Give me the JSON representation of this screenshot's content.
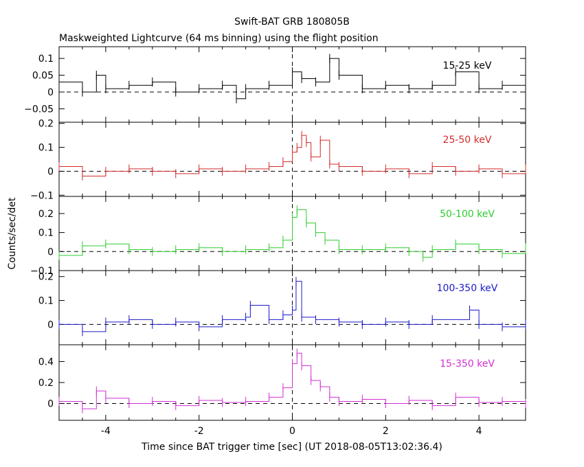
{
  "title": "Swift-BAT GRB 180805B",
  "subtitle": "Maskweighted Lightcurve (64 ms binning) using the flight position",
  "chart_data": {
    "type": "line",
    "xlabel": "Time since BAT trigger time [sec] (UT 2018-08-05T13:02:36.4)",
    "ylabel": "Counts/sec/det",
    "xlim": [
      -5,
      5
    ],
    "bin_width": 0.064,
    "x_ticks": [
      "-4",
      "-2",
      "0",
      "2",
      "4"
    ],
    "x_tick_values": [
      -4,
      -2,
      0,
      2,
      4
    ],
    "grid": false,
    "trigger_marker_x": 0,
    "panels": [
      {
        "name": "15-25 keV",
        "color": "#000000",
        "ylim": [
          -0.09,
          0.135
        ],
        "y_ticks": [
          -0.05,
          0,
          0.05,
          0.1
        ],
        "y_tick_labels": [
          "−0.05",
          "0",
          "0.05",
          "0.1"
        ],
        "series": [
          {
            "x": -5,
            "y": 0.03
          },
          {
            "x": -4.5,
            "y": 0.0
          },
          {
            "x": -4.2,
            "y": 0.05
          },
          {
            "x": -4,
            "y": 0.01
          },
          {
            "x": -3.5,
            "y": 0.02
          },
          {
            "x": -3,
            "y": 0.03
          },
          {
            "x": -2.5,
            "y": 0.0
          },
          {
            "x": -2,
            "y": 0.01
          },
          {
            "x": -1.5,
            "y": 0.02
          },
          {
            "x": -1.2,
            "y": -0.02
          },
          {
            "x": -1,
            "y": 0.01
          },
          {
            "x": -0.5,
            "y": 0.02
          },
          {
            "x": 0,
            "y": 0.06
          },
          {
            "x": 0.2,
            "y": 0.04
          },
          {
            "x": 0.5,
            "y": 0.03
          },
          {
            "x": 0.8,
            "y": 0.1
          },
          {
            "x": 1,
            "y": 0.05
          },
          {
            "x": 1.5,
            "y": 0.01
          },
          {
            "x": 2,
            "y": 0.02
          },
          {
            "x": 2.5,
            "y": 0.01
          },
          {
            "x": 3,
            "y": 0.02
          },
          {
            "x": 3.5,
            "y": 0.06
          },
          {
            "x": 4,
            "y": 0.01
          },
          {
            "x": 4.5,
            "y": 0.02
          },
          {
            "x": 5,
            "y": 0.0
          }
        ]
      },
      {
        "name": "25-50 keV",
        "color": "#d42a2a",
        "ylim": [
          -0.105,
          0.205
        ],
        "y_ticks": [
          -0.1,
          0,
          0.1,
          0.2
        ],
        "y_tick_labels": [
          "−0.1",
          "0",
          "0.1",
          "0.2"
        ],
        "series": [
          {
            "x": -5,
            "y": 0.02
          },
          {
            "x": -4.5,
            "y": -0.02
          },
          {
            "x": -4,
            "y": 0.0
          },
          {
            "x": -3.5,
            "y": 0.01
          },
          {
            "x": -3,
            "y": 0.0
          },
          {
            "x": -2.5,
            "y": -0.01
          },
          {
            "x": -2,
            "y": 0.01
          },
          {
            "x": -1.5,
            "y": 0.0
          },
          {
            "x": -1,
            "y": 0.01
          },
          {
            "x": -0.5,
            "y": 0.02
          },
          {
            "x": -0.2,
            "y": 0.04
          },
          {
            "x": 0,
            "y": 0.08
          },
          {
            "x": 0.1,
            "y": 0.1
          },
          {
            "x": 0.2,
            "y": 0.15
          },
          {
            "x": 0.3,
            "y": 0.12
          },
          {
            "x": 0.4,
            "y": 0.06
          },
          {
            "x": 0.6,
            "y": 0.13
          },
          {
            "x": 0.8,
            "y": 0.03
          },
          {
            "x": 1,
            "y": 0.02
          },
          {
            "x": 1.5,
            "y": 0.0
          },
          {
            "x": 2,
            "y": 0.01
          },
          {
            "x": 2.5,
            "y": -0.01
          },
          {
            "x": 3,
            "y": 0.02
          },
          {
            "x": 3.5,
            "y": 0.0
          },
          {
            "x": 4,
            "y": 0.01
          },
          {
            "x": 4.5,
            "y": -0.01
          },
          {
            "x": 5,
            "y": 0.01
          }
        ]
      },
      {
        "name": "50-100 keV",
        "color": "#2ecc2e",
        "ylim": [
          -0.1,
          0.29
        ],
        "y_ticks": [
          -0.1,
          0,
          0.1,
          0.2
        ],
        "y_tick_labels": [
          "−0.1",
          "0",
          "0.1",
          "0.2"
        ],
        "series": [
          {
            "x": -5,
            "y": -0.02
          },
          {
            "x": -4.5,
            "y": 0.03
          },
          {
            "x": -4,
            "y": 0.04
          },
          {
            "x": -3.5,
            "y": 0.01
          },
          {
            "x": -3,
            "y": 0.0
          },
          {
            "x": -2.5,
            "y": 0.01
          },
          {
            "x": -2,
            "y": 0.02
          },
          {
            "x": -1.5,
            "y": 0.0
          },
          {
            "x": -1,
            "y": 0.01
          },
          {
            "x": -0.5,
            "y": 0.02
          },
          {
            "x": -0.2,
            "y": 0.06
          },
          {
            "x": 0,
            "y": 0.18
          },
          {
            "x": 0.1,
            "y": 0.22
          },
          {
            "x": 0.3,
            "y": 0.15
          },
          {
            "x": 0.5,
            "y": 0.1
          },
          {
            "x": 0.7,
            "y": 0.06
          },
          {
            "x": 1,
            "y": 0.01
          },
          {
            "x": 1.5,
            "y": 0.01
          },
          {
            "x": 2,
            "y": 0.02
          },
          {
            "x": 2.5,
            "y": 0.0
          },
          {
            "x": 2.8,
            "y": -0.03
          },
          {
            "x": 3,
            "y": 0.01
          },
          {
            "x": 3.5,
            "y": 0.04
          },
          {
            "x": 4,
            "y": 0.01
          },
          {
            "x": 4.5,
            "y": -0.01
          },
          {
            "x": 5,
            "y": 0.02
          }
        ]
      },
      {
        "name": "100-350 keV",
        "color": "#1a1ac8",
        "ylim": [
          -0.085,
          0.225
        ],
        "y_ticks": [
          0,
          0.1,
          0.2
        ],
        "y_tick_labels": [
          "0",
          "0.1",
          "0.2"
        ],
        "series": [
          {
            "x": -5,
            "y": 0.0
          },
          {
            "x": -4.5,
            "y": -0.03
          },
          {
            "x": -4,
            "y": 0.01
          },
          {
            "x": -3.5,
            "y": 0.02
          },
          {
            "x": -3,
            "y": 0.0
          },
          {
            "x": -2.5,
            "y": 0.01
          },
          {
            "x": -2,
            "y": -0.01
          },
          {
            "x": -1.5,
            "y": 0.02
          },
          {
            "x": -1,
            "y": 0.03
          },
          {
            "x": -0.9,
            "y": 0.08
          },
          {
            "x": -0.5,
            "y": 0.02
          },
          {
            "x": -0.2,
            "y": 0.04
          },
          {
            "x": 0,
            "y": 0.06
          },
          {
            "x": 0.08,
            "y": 0.18
          },
          {
            "x": 0.2,
            "y": 0.03
          },
          {
            "x": 0.5,
            "y": 0.02
          },
          {
            "x": 1,
            "y": 0.01
          },
          {
            "x": 1.5,
            "y": 0.0
          },
          {
            "x": 2,
            "y": 0.01
          },
          {
            "x": 2.5,
            "y": 0.0
          },
          {
            "x": 3,
            "y": 0.02
          },
          {
            "x": 3.8,
            "y": 0.06
          },
          {
            "x": 4,
            "y": 0.0
          },
          {
            "x": 4.5,
            "y": -0.01
          },
          {
            "x": 5,
            "y": 0.0
          }
        ]
      },
      {
        "name": "15-350 keV",
        "color": "#d22ed2",
        "ylim": [
          -0.16,
          0.56
        ],
        "y_ticks": [
          0,
          0.2,
          0.4
        ],
        "y_tick_labels": [
          "0",
          "0.2",
          "0.4"
        ],
        "series": [
          {
            "x": -5,
            "y": 0.02
          },
          {
            "x": -4.5,
            "y": -0.05
          },
          {
            "x": -4.2,
            "y": 0.12
          },
          {
            "x": -4,
            "y": 0.05
          },
          {
            "x": -3.5,
            "y": 0.0
          },
          {
            "x": -3,
            "y": 0.02
          },
          {
            "x": -2.5,
            "y": -0.02
          },
          {
            "x": -2,
            "y": 0.03
          },
          {
            "x": -1.5,
            "y": 0.01
          },
          {
            "x": -1,
            "y": 0.02
          },
          {
            "x": -0.5,
            "y": 0.06
          },
          {
            "x": -0.2,
            "y": 0.15
          },
          {
            "x": 0,
            "y": 0.38
          },
          {
            "x": 0.1,
            "y": 0.48
          },
          {
            "x": 0.2,
            "y": 0.36
          },
          {
            "x": 0.4,
            "y": 0.22
          },
          {
            "x": 0.6,
            "y": 0.16
          },
          {
            "x": 0.8,
            "y": 0.06
          },
          {
            "x": 1,
            "y": 0.02
          },
          {
            "x": 1.5,
            "y": 0.04
          },
          {
            "x": 2,
            "y": 0.0
          },
          {
            "x": 2.5,
            "y": 0.03
          },
          {
            "x": 3,
            "y": -0.02
          },
          {
            "x": 3.5,
            "y": 0.06
          },
          {
            "x": 4,
            "y": 0.01
          },
          {
            "x": 4.5,
            "y": 0.02
          },
          {
            "x": 5,
            "y": 0.0
          }
        ]
      }
    ]
  }
}
